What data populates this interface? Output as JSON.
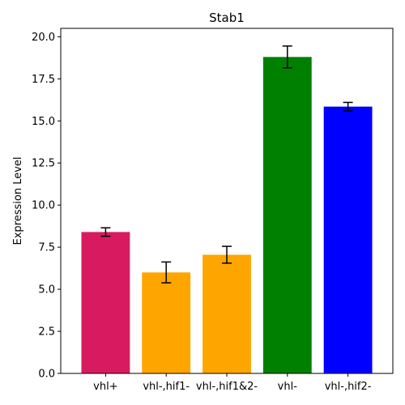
{
  "chart_data": {
    "type": "bar",
    "title": "Stab1",
    "xlabel": "",
    "ylabel": "Expression Level",
    "categories": [
      "vhl+",
      "vhl-,hif1-",
      "vhl-,hif1&2-",
      "vhl-",
      "vhl-,hif2-"
    ],
    "values": [
      8.4,
      6.0,
      7.05,
      18.8,
      15.85
    ],
    "errors": [
      0.25,
      0.62,
      0.5,
      0.65,
      0.25
    ],
    "colors": [
      "#d81b60",
      "#ffa500",
      "#ffa500",
      "#008000",
      "#0000ff"
    ],
    "ylim": [
      0,
      20.5
    ],
    "yticks": [
      "0.0",
      "2.5",
      "5.0",
      "7.5",
      "10.0",
      "12.5",
      "15.0",
      "17.5",
      "20.0"
    ],
    "grid": false
  }
}
